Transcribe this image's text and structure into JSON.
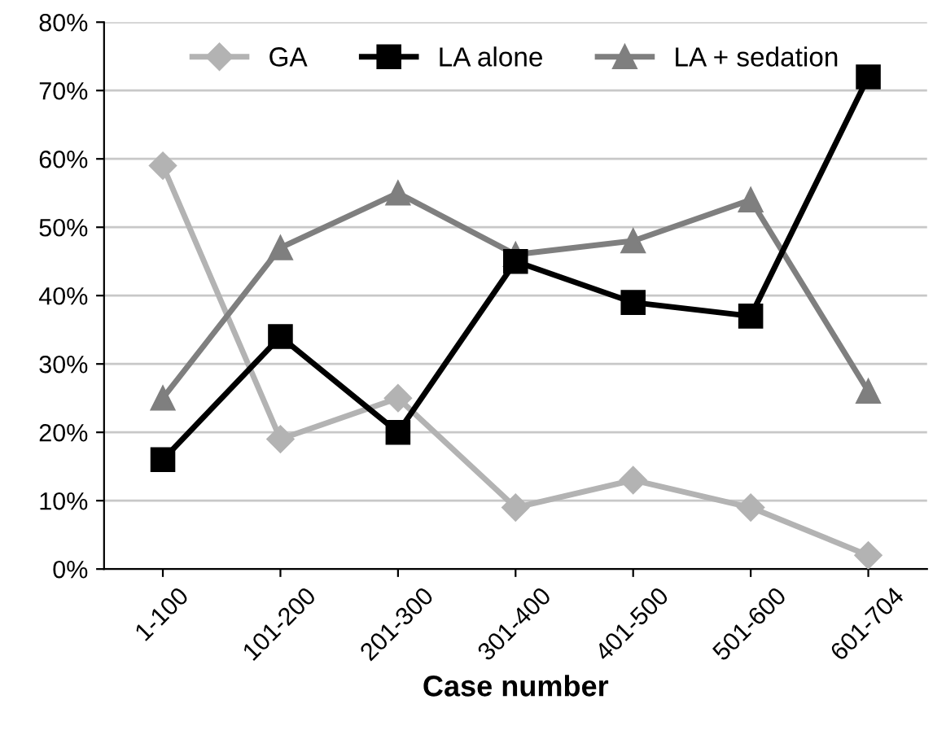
{
  "chart_data": {
    "type": "line",
    "xlabel": "Case number",
    "categories": [
      "1-100",
      "101-200",
      "201-300",
      "301-400",
      "401-500",
      "501-600",
      "601-704"
    ],
    "series": [
      {
        "name": "GA",
        "color": "#b3b3b3",
        "marker": "diamond",
        "values": [
          59,
          19,
          25,
          9,
          13,
          9,
          2
        ]
      },
      {
        "name": "LA alone",
        "color": "#000000",
        "marker": "square",
        "values": [
          16,
          34,
          20,
          45,
          39,
          37,
          72
        ]
      },
      {
        "name": "LA + sedation",
        "color": "#7f7f7f",
        "marker": "triangle",
        "values": [
          25,
          47,
          55,
          46,
          48,
          54,
          26
        ]
      }
    ],
    "ylim": [
      0,
      80
    ],
    "yticks": [
      {
        "value": 0,
        "label": "0%"
      },
      {
        "value": 10,
        "label": "10%"
      },
      {
        "value": 20,
        "label": "20%"
      },
      {
        "value": 30,
        "label": "30%"
      },
      {
        "value": 40,
        "label": "40%"
      },
      {
        "value": 50,
        "label": "50%"
      },
      {
        "value": 60,
        "label": "60%"
      },
      {
        "value": 70,
        "label": "70%"
      },
      {
        "value": 80,
        "label": "80%"
      }
    ],
    "grid": "y",
    "legend": "top",
    "line_style": "solid"
  }
}
